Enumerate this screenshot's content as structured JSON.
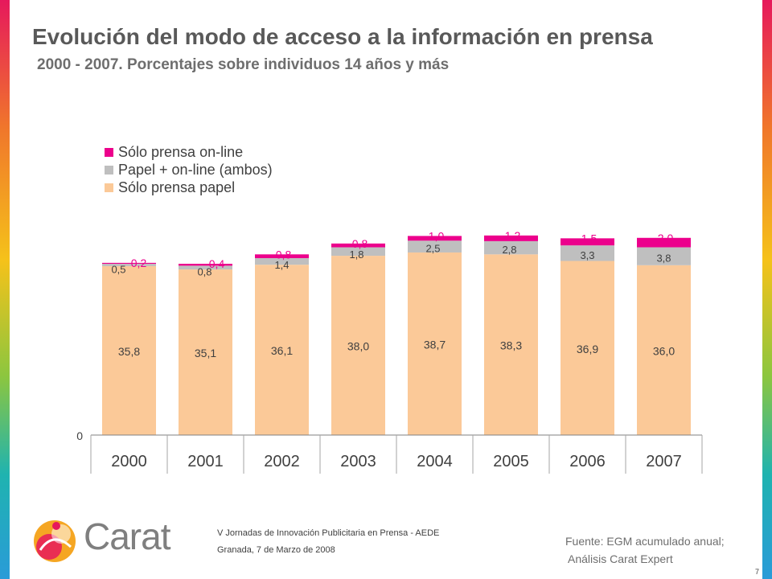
{
  "slide": {
    "title": "Evolución del modo de acceso a la información en prensa",
    "subtitle": "2000 - 2007. Porcentajes sobre individuos 14 años y más",
    "brand": "Carat",
    "event_line1": "V Jornadas de Innovación Publicitaria en Prensa - AEDE",
    "event_line2": "Granada, 7 de Marzo de 2008",
    "source_line1": "Fuente: EGM acumulado anual;",
    "source_line2": "Análisis Carat Expert",
    "page_number": "7"
  },
  "chart_data": {
    "type": "bar",
    "stacked": true,
    "categories": [
      "2000",
      "2001",
      "2002",
      "2003",
      "2004",
      "2005",
      "2006",
      "2007"
    ],
    "series": [
      {
        "name": "Sólo prensa papel",
        "color": "#fbc998",
        "values": [
          35.8,
          35.1,
          36.1,
          38.0,
          38.7,
          38.3,
          36.9,
          36.0
        ],
        "labels": [
          "35,8",
          "35,1",
          "36,1",
          "38,0",
          "38,7",
          "38,3",
          "36,9",
          "36,0"
        ],
        "label_color": "#404040"
      },
      {
        "name": "Papel + on-line (ambos)",
        "color": "#bfbfbf",
        "values": [
          0.5,
          0.8,
          1.4,
          1.8,
          2.5,
          2.8,
          3.3,
          3.8
        ],
        "labels": [
          "0,5",
          "0,8",
          "1,4",
          "1,8",
          "2,5",
          "2,8",
          "3,3",
          "3,8"
        ],
        "label_color": "#404040"
      },
      {
        "name": "Sólo prensa on-line",
        "color": "#ec008c",
        "values": [
          0.2,
          0.4,
          0.8,
          0.8,
          1.0,
          1.2,
          1.5,
          2.0
        ],
        "labels": [
          "0,2",
          "0,4",
          "0,8",
          "0,8",
          "1,0",
          "1,2",
          "1,5",
          "2,0"
        ],
        "label_color": "#ec008c"
      }
    ],
    "y_tick_labels": [
      "0"
    ],
    "ylim": [
      0,
      45
    ],
    "legend_position": "top-left",
    "grid": false
  }
}
